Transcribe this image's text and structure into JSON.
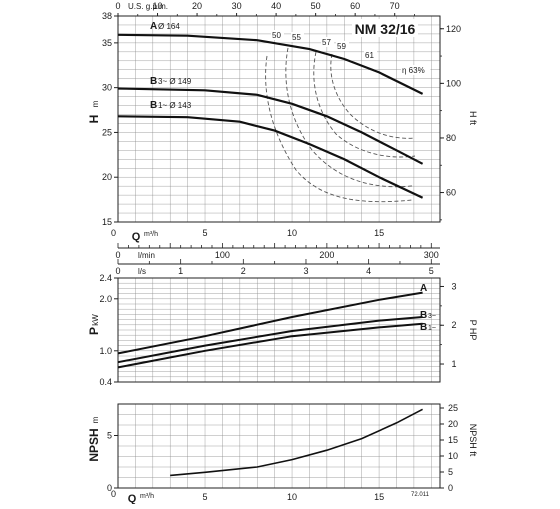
{
  "model": "NM 32/16",
  "figure_code": "72.011",
  "chart_data": [
    {
      "type": "line",
      "name_panel": "head",
      "ylabel": "H",
      "ylabel_unit": "m",
      "ylabel_right": "H ft",
      "top_axis_label": "U.S. g.p.m.",
      "top_axis_ticks": [
        0,
        10,
        20,
        30,
        40,
        50,
        60,
        70
      ],
      "right_axis_ticks": [
        60,
        80,
        100,
        120
      ],
      "xlabel": "Q",
      "xlabel_unit": "m³/h",
      "xlim": [
        0,
        18.5
      ],
      "ylim": [
        15,
        38
      ],
      "y_ticks": [
        15,
        20,
        25,
        30,
        35,
        38
      ],
      "x_ticks": [
        0,
        5,
        10,
        15
      ],
      "secondary_axes": [
        {
          "label": "l/min",
          "ticks": [
            0,
            100,
            200,
            300
          ]
        },
        {
          "label": "l/s",
          "ticks": [
            0,
            1,
            2,
            3,
            4,
            5
          ]
        }
      ],
      "series": [
        {
          "name": "A",
          "label_extra": "Ø 164",
          "x": [
            0,
            4,
            8,
            11,
            13,
            15,
            17.5
          ],
          "y": [
            35.9,
            35.8,
            35.3,
            34.3,
            33.2,
            31.7,
            29.3
          ]
        },
        {
          "name": "B",
          "label_extra": "3~ Ø 149",
          "x": [
            0,
            5,
            8,
            10,
            12,
            14,
            16,
            17.5
          ],
          "y": [
            29.9,
            29.7,
            29.2,
            28.2,
            26.8,
            25.0,
            23.0,
            21.5
          ]
        },
        {
          "name": "B",
          "label_extra": "1~ Ø 143",
          "x": [
            0,
            4,
            7,
            9,
            11,
            13,
            15,
            17.5
          ],
          "y": [
            26.8,
            26.7,
            26.2,
            25.2,
            23.7,
            22.0,
            20.0,
            17.7
          ]
        }
      ],
      "efficiency_labels": [
        "50",
        "55",
        "57",
        "59",
        "61",
        "η 63%"
      ]
    },
    {
      "type": "line",
      "name_panel": "power",
      "ylabel": "P",
      "ylabel_unit": "kW",
      "ylabel_right": "P HP",
      "xlim": [
        0,
        18.5
      ],
      "ylim": [
        0.4,
        2.4
      ],
      "y_ticks": [
        0.4,
        1.0,
        2.0,
        2.4
      ],
      "right_axis_ticks": [
        1,
        2,
        3
      ],
      "series": [
        {
          "name": "A",
          "x": [
            0,
            5,
            10,
            15,
            17.5
          ],
          "y": [
            0.95,
            1.28,
            1.65,
            1.98,
            2.12
          ]
        },
        {
          "name": "B",
          "label_extra": "3~",
          "x": [
            0,
            5,
            10,
            15,
            17.5
          ],
          "y": [
            0.78,
            1.1,
            1.38,
            1.58,
            1.65
          ]
        },
        {
          "name": "B",
          "label_extra": "1~",
          "x": [
            0,
            5,
            10,
            15,
            17.5
          ],
          "y": [
            0.68,
            1.0,
            1.28,
            1.45,
            1.52
          ]
        }
      ]
    },
    {
      "type": "line",
      "name_panel": "npsh",
      "ylabel": "NPSH",
      "ylabel_unit": "m",
      "ylabel_right": "NPSH ft",
      "xlabel": "Q",
      "xlabel_unit": "m³/h",
      "xlim": [
        0,
        18.5
      ],
      "ylim": [
        0,
        8
      ],
      "y_ticks": [
        0,
        5
      ],
      "right_axis_ticks": [
        0,
        5,
        10,
        15,
        20,
        25
      ],
      "x_ticks": [
        5,
        10,
        15
      ],
      "series": [
        {
          "name": "NPSH",
          "x": [
            3,
            5,
            8,
            10,
            12,
            14,
            16,
            17.5
          ],
          "y": [
            1.2,
            1.5,
            2.0,
            2.7,
            3.6,
            4.7,
            6.2,
            7.5
          ]
        }
      ]
    }
  ]
}
